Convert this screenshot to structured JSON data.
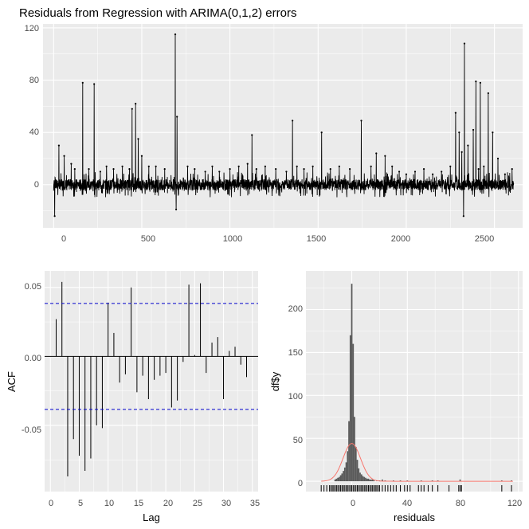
{
  "chart_data": [
    {
      "type": "line",
      "title": "Residuals from Regression with ARIMA(0,1,2) errors",
      "xlabel": "",
      "ylabel": "",
      "xlim": [
        -60,
        2660
      ],
      "ylim": [
        -33,
        123
      ],
      "xticks": [
        "0",
        "500",
        "1000",
        "1500",
        "2000",
        "2500"
      ],
      "yticks": [
        "0",
        "40",
        "80",
        "120"
      ],
      "grid": true,
      "n": 2610,
      "baseline_range": [
        -6,
        6
      ],
      "spikes": [
        {
          "x": 6,
          "y": -24
        },
        {
          "x": 30,
          "y": 30
        },
        {
          "x": 60,
          "y": 22
        },
        {
          "x": 100,
          "y": 16
        },
        {
          "x": 120,
          "y": 12
        },
        {
          "x": 165,
          "y": 78
        },
        {
          "x": 200,
          "y": 12
        },
        {
          "x": 230,
          "y": 77
        },
        {
          "x": 265,
          "y": 10
        },
        {
          "x": 300,
          "y": 14
        },
        {
          "x": 340,
          "y": 12
        },
        {
          "x": 390,
          "y": 14
        },
        {
          "x": 430,
          "y": 12
        },
        {
          "x": 445,
          "y": 58
        },
        {
          "x": 465,
          "y": 62
        },
        {
          "x": 480,
          "y": 35
        },
        {
          "x": 500,
          "y": 22
        },
        {
          "x": 540,
          "y": 14
        },
        {
          "x": 580,
          "y": 14
        },
        {
          "x": 630,
          "y": 12
        },
        {
          "x": 690,
          "y": 115
        },
        {
          "x": 700,
          "y": 52
        },
        {
          "x": 695,
          "y": -19
        },
        {
          "x": 760,
          "y": 14
        },
        {
          "x": 800,
          "y": 12
        },
        {
          "x": 860,
          "y": 10
        },
        {
          "x": 900,
          "y": 14
        },
        {
          "x": 940,
          "y": 10
        },
        {
          "x": 1000,
          "y": 12
        },
        {
          "x": 1050,
          "y": 14
        },
        {
          "x": 1100,
          "y": 16
        },
        {
          "x": 1125,
          "y": 38
        },
        {
          "x": 1150,
          "y": 12
        },
        {
          "x": 1200,
          "y": 14
        },
        {
          "x": 1260,
          "y": 12
        },
        {
          "x": 1320,
          "y": 10
        },
        {
          "x": 1355,
          "y": 49
        },
        {
          "x": 1380,
          "y": 14
        },
        {
          "x": 1420,
          "y": 12
        },
        {
          "x": 1470,
          "y": 14
        },
        {
          "x": 1520,
          "y": 40
        },
        {
          "x": 1570,
          "y": 12
        },
        {
          "x": 1620,
          "y": 14
        },
        {
          "x": 1680,
          "y": 12
        },
        {
          "x": 1745,
          "y": 49
        },
        {
          "x": 1800,
          "y": 14
        },
        {
          "x": 1830,
          "y": 24
        },
        {
          "x": 1880,
          "y": 22
        },
        {
          "x": 1920,
          "y": 14
        },
        {
          "x": 1960,
          "y": 10
        },
        {
          "x": 2000,
          "y": 8
        },
        {
          "x": 2050,
          "y": 10
        },
        {
          "x": 2100,
          "y": 12
        },
        {
          "x": 2150,
          "y": 8
        },
        {
          "x": 2200,
          "y": 10
        },
        {
          "x": 2250,
          "y": 14
        },
        {
          "x": 2280,
          "y": 55
        },
        {
          "x": 2300,
          "y": 40
        },
        {
          "x": 2315,
          "y": 25
        },
        {
          "x": 2330,
          "y": 108
        },
        {
          "x": 2325,
          "y": -24
        },
        {
          "x": 2350,
          "y": 30
        },
        {
          "x": 2380,
          "y": 42
        },
        {
          "x": 2395,
          "y": 79
        },
        {
          "x": 2410,
          "y": 12
        },
        {
          "x": 2420,
          "y": 78
        },
        {
          "x": 2440,
          "y": 14
        },
        {
          "x": 2465,
          "y": 70
        },
        {
          "x": 2490,
          "y": 40
        },
        {
          "x": 2520,
          "y": 20
        },
        {
          "x": 2560,
          "y": 8
        },
        {
          "x": 2600,
          "y": 12
        }
      ]
    },
    {
      "type": "bar",
      "title": "",
      "xlabel": "Lag",
      "ylabel": "ACF",
      "xlim": [
        -1,
        36
      ],
      "ylim": [
        -0.098,
        0.062
      ],
      "xticks": [
        "0",
        "5",
        "10",
        "15",
        "20",
        "25",
        "30",
        "35"
      ],
      "yticks": [
        "0.05",
        "0.00",
        "-0.05"
      ],
      "grid": true,
      "confidence_bound": 0.0384,
      "lags": [
        1,
        2,
        3,
        4,
        5,
        6,
        7,
        8,
        9,
        10,
        11,
        12,
        13,
        14,
        15,
        16,
        17,
        18,
        19,
        20,
        21,
        22,
        23,
        24,
        25,
        26,
        27,
        28,
        29,
        30,
        31,
        32,
        33,
        34
      ],
      "values": [
        0.027,
        0.054,
        -0.087,
        -0.06,
        -0.072,
        -0.083,
        -0.074,
        -0.05,
        -0.052,
        0.039,
        0.017,
        -0.019,
        -0.013,
        0.05,
        -0.026,
        -0.014,
        -0.031,
        -0.017,
        -0.014,
        -0.012,
        -0.037,
        -0.032,
        -0.004,
        0.052,
        0.001,
        0.053,
        -0.012,
        0.01,
        0.014,
        -0.031,
        0.004,
        0.007,
        -0.006,
        -0.015
      ]
    },
    {
      "type": "histogram",
      "title": "",
      "xlabel": "residuals",
      "ylabel": "df$y",
      "xlim": [
        -33,
        123
      ],
      "ylim": [
        -12,
        245
      ],
      "xticks": [
        "0",
        "40",
        "80",
        "120"
      ],
      "yticks": [
        "0",
        "50",
        "100",
        "150",
        "200"
      ],
      "grid": true,
      "bin_width": 1,
      "bins": [
        {
          "x": -12,
          "count": 2
        },
        {
          "x": -11,
          "count": 3
        },
        {
          "x": -10,
          "count": 4
        },
        {
          "x": -9,
          "count": 5
        },
        {
          "x": -8,
          "count": 7
        },
        {
          "x": -7,
          "count": 9
        },
        {
          "x": -6,
          "count": 12
        },
        {
          "x": -5,
          "count": 16
        },
        {
          "x": -4,
          "count": 22
        },
        {
          "x": -3,
          "count": 35
        },
        {
          "x": -2,
          "count": 70
        },
        {
          "x": -1,
          "count": 170
        },
        {
          "x": 0,
          "count": 230
        },
        {
          "x": 1,
          "count": 160
        },
        {
          "x": 2,
          "count": 75
        },
        {
          "x": 3,
          "count": 40
        },
        {
          "x": 4,
          "count": 25
        },
        {
          "x": 5,
          "count": 15
        },
        {
          "x": 6,
          "count": 10
        },
        {
          "x": 7,
          "count": 8
        },
        {
          "x": 8,
          "count": 6
        },
        {
          "x": 9,
          "count": 5
        },
        {
          "x": 10,
          "count": 4
        },
        {
          "x": 11,
          "count": 3
        },
        {
          "x": 12,
          "count": 3
        },
        {
          "x": 13,
          "count": 2
        },
        {
          "x": 14,
          "count": 2
        },
        {
          "x": 15,
          "count": 2
        },
        {
          "x": 16,
          "count": 1
        },
        {
          "x": 18,
          "count": 1
        },
        {
          "x": 20,
          "count": 1
        },
        {
          "x": 22,
          "count": 2
        },
        {
          "x": 24,
          "count": 1
        },
        {
          "x": 30,
          "count": 1
        },
        {
          "x": 35,
          "count": 1
        },
        {
          "x": 40,
          "count": 1
        },
        {
          "x": 50,
          "count": 1
        },
        {
          "x": 58,
          "count": 1
        },
        {
          "x": 62,
          "count": 1
        },
        {
          "x": 78,
          "count": 2
        },
        {
          "x": 108,
          "count": 1
        },
        {
          "x": 115,
          "count": 1
        }
      ],
      "normal_curve": {
        "mean": 0,
        "sd": 6.3,
        "peak": 44,
        "color": "#f8766d"
      },
      "rug_values": [
        -22,
        -20,
        -18,
        -16,
        -15,
        -14,
        -13,
        -12,
        -11,
        -10,
        -9,
        -8,
        -7,
        -6,
        -5,
        -4,
        -3,
        -2,
        -1,
        0,
        1,
        2,
        3,
        4,
        5,
        6,
        7,
        8,
        9,
        10,
        11,
        12,
        13,
        14,
        15,
        16,
        17,
        18,
        19,
        20,
        22,
        24,
        26,
        28,
        30,
        32,
        35,
        38,
        40,
        42,
        48,
        50,
        52,
        55,
        58,
        62,
        70,
        77,
        78,
        79,
        108,
        115
      ]
    }
  ]
}
